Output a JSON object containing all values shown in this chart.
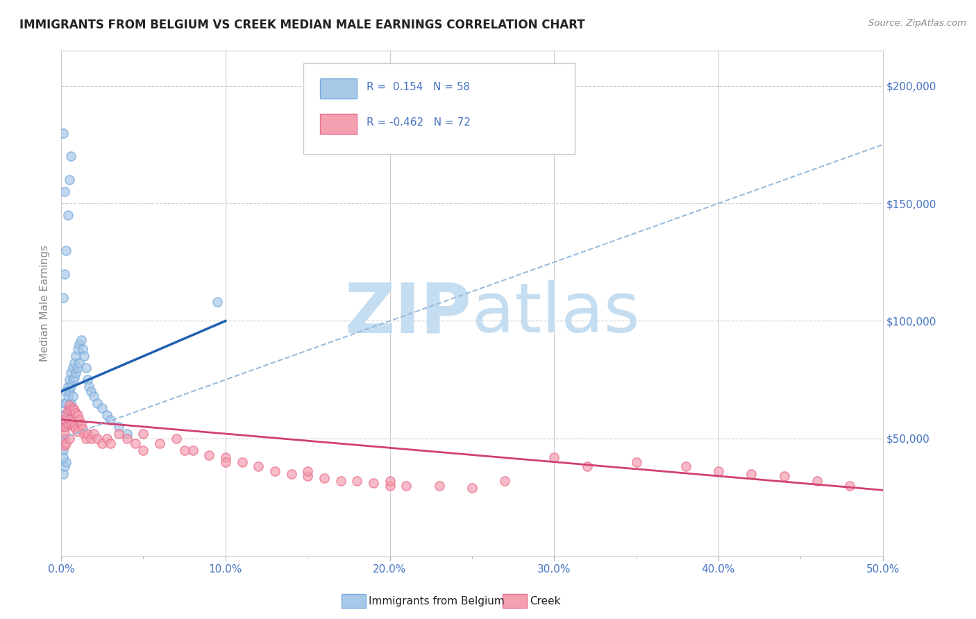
{
  "title": "IMMIGRANTS FROM BELGIUM VS CREEK MEDIAN MALE EARNINGS CORRELATION CHART",
  "source_text": "Source: ZipAtlas.com",
  "ylabel": "Median Male Earnings",
  "xlim": [
    0.0,
    0.5
  ],
  "ylim": [
    0,
    215000
  ],
  "xticks": [
    0.0,
    0.05,
    0.1,
    0.15,
    0.2,
    0.25,
    0.3,
    0.35,
    0.4,
    0.45,
    0.5
  ],
  "xtick_major": [
    0.0,
    0.1,
    0.2,
    0.3,
    0.4,
    0.5
  ],
  "xtick_major_labels": [
    "0.0%",
    "10.0%",
    "20.0%",
    "30.0%",
    "40.0%",
    "50.0%"
  ],
  "yticks": [
    0,
    50000,
    100000,
    150000,
    200000
  ],
  "ytick_labels_right": [
    "",
    "$50,000",
    "$100,000",
    "$150,000",
    "$200,000"
  ],
  "blue_R": 0.154,
  "blue_N": 58,
  "pink_R": -0.462,
  "pink_N": 72,
  "blue_color": "#a8c8e8",
  "pink_color": "#f4a0b0",
  "blue_edge_color": "#7aacdc",
  "pink_edge_color": "#e87090",
  "blue_line_color": "#2060b0",
  "pink_line_color": "#d04070",
  "gray_dash_color": "#99bbdd",
  "title_color": "#222222",
  "axis_color": "#888888",
  "tick_label_color": "#4472c4",
  "watermark_color": "#c5ddf0",
  "grid_color": "#cccccc",
  "blue_trend_x0": 0.0,
  "blue_trend_y0": 70000,
  "blue_trend_x1": 0.1,
  "blue_trend_y1": 100000,
  "pink_trend_x0": 0.0,
  "pink_trend_y0": 58000,
  "pink_trend_x1": 0.5,
  "pink_trend_y1": 28000,
  "gray_trend_x0": 0.0,
  "gray_trend_y0": 50000,
  "gray_trend_x1": 0.5,
  "gray_trend_y1": 175000,
  "blue_scatter_x": [
    0.001,
    0.001,
    0.001,
    0.001,
    0.002,
    0.002,
    0.002,
    0.002,
    0.003,
    0.003,
    0.003,
    0.004,
    0.004,
    0.004,
    0.005,
    0.005,
    0.005,
    0.006,
    0.006,
    0.006,
    0.007,
    0.007,
    0.007,
    0.008,
    0.008,
    0.009,
    0.009,
    0.01,
    0.01,
    0.011,
    0.011,
    0.012,
    0.013,
    0.014,
    0.015,
    0.016,
    0.017,
    0.018,
    0.02,
    0.022,
    0.025,
    0.028,
    0.03,
    0.035,
    0.04,
    0.001,
    0.002,
    0.003,
    0.004,
    0.005,
    0.006,
    0.001,
    0.002,
    0.003,
    0.001,
    0.002,
    0.001,
    0.095
  ],
  "blue_scatter_y": [
    60000,
    55000,
    50000,
    45000,
    65000,
    60000,
    55000,
    50000,
    70000,
    65000,
    58000,
    72000,
    68000,
    60000,
    75000,
    70000,
    63000,
    78000,
    72000,
    65000,
    80000,
    75000,
    68000,
    82000,
    76000,
    85000,
    78000,
    88000,
    80000,
    90000,
    82000,
    92000,
    88000,
    85000,
    80000,
    75000,
    72000,
    70000,
    68000,
    65000,
    63000,
    60000,
    58000,
    55000,
    52000,
    110000,
    120000,
    130000,
    145000,
    160000,
    170000,
    35000,
    38000,
    40000,
    180000,
    155000,
    42000,
    108000
  ],
  "pink_scatter_x": [
    0.001,
    0.001,
    0.002,
    0.002,
    0.002,
    0.003,
    0.003,
    0.003,
    0.004,
    0.004,
    0.005,
    0.005,
    0.005,
    0.006,
    0.006,
    0.007,
    0.007,
    0.008,
    0.008,
    0.009,
    0.009,
    0.01,
    0.01,
    0.011,
    0.012,
    0.013,
    0.014,
    0.015,
    0.016,
    0.018,
    0.02,
    0.022,
    0.025,
    0.028,
    0.03,
    0.035,
    0.04,
    0.045,
    0.05,
    0.06,
    0.07,
    0.08,
    0.09,
    0.1,
    0.11,
    0.12,
    0.13,
    0.14,
    0.15,
    0.16,
    0.17,
    0.18,
    0.19,
    0.2,
    0.21,
    0.23,
    0.25,
    0.27,
    0.3,
    0.32,
    0.35,
    0.38,
    0.4,
    0.42,
    0.44,
    0.46,
    0.48,
    0.05,
    0.075,
    0.1,
    0.15,
    0.2
  ],
  "pink_scatter_y": [
    55000,
    50000,
    58000,
    52000,
    47000,
    60000,
    55000,
    48000,
    62000,
    56000,
    64000,
    58000,
    50000,
    62000,
    56000,
    63000,
    57000,
    62000,
    55000,
    61000,
    54000,
    60000,
    53000,
    58000,
    56000,
    54000,
    52000,
    50000,
    52000,
    50000,
    52000,
    50000,
    48000,
    50000,
    48000,
    52000,
    50000,
    48000,
    52000,
    48000,
    50000,
    45000,
    43000,
    42000,
    40000,
    38000,
    36000,
    35000,
    34000,
    33000,
    32000,
    32000,
    31000,
    30000,
    30000,
    30000,
    29000,
    32000,
    42000,
    38000,
    40000,
    38000,
    36000,
    35000,
    34000,
    32000,
    30000,
    45000,
    45000,
    40000,
    36000,
    32000
  ]
}
